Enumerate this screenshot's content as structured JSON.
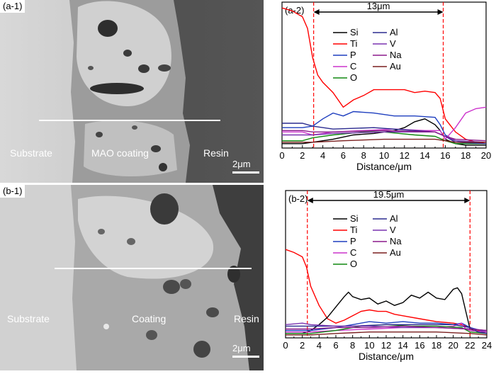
{
  "sem_panels": [
    {
      "label": "(a-1)",
      "regions": [
        "Substrate",
        "MAO coating",
        "Resin"
      ],
      "scale_bar": "2μm"
    },
    {
      "label": "(b-1)",
      "regions": [
        "Substrate",
        "Coating",
        "Resin"
      ],
      "scale_bar": "2μm"
    }
  ],
  "colors": {
    "Si": "#000000",
    "Ti": "#ff0000",
    "P": "#1f3fbf",
    "C": "#cc33cc",
    "O": "#118811",
    "Al": "#2b2b8f",
    "V": "#7a33b0",
    "Na": "#8b1a8b",
    "Au": "#7a1f1f",
    "marker": "#ff0000"
  },
  "chart_data": [
    {
      "type": "line",
      "panel_label": "(a-2)",
      "xlabel": "Distance/μm",
      "xlim": [
        0,
        20
      ],
      "xticks": [
        0,
        2,
        4,
        6,
        8,
        10,
        12,
        14,
        16,
        18,
        20
      ],
      "ylim": [
        0,
        100
      ],
      "markers": [
        3.1,
        15.8
      ],
      "span_label": "13μm",
      "legend": {
        "col1": [
          "Si",
          "Ti",
          "P",
          "C",
          "O"
        ],
        "col2": [
          "Al",
          "V",
          "Na",
          "Au"
        ]
      },
      "series": [
        {
          "name": "Ti",
          "x": [
            0,
            1,
            2,
            2.5,
            3,
            3.5,
            4,
            5,
            6,
            7,
            8,
            9,
            10,
            11,
            12,
            13,
            14,
            15,
            15.5,
            16,
            17,
            18,
            19,
            20
          ],
          "y": [
            96,
            94,
            90,
            82,
            62,
            50,
            45,
            38,
            28,
            33,
            36,
            40,
            40,
            40,
            40,
            38,
            39,
            38,
            34,
            20,
            11,
            6,
            4,
            3
          ]
        },
        {
          "name": "Si",
          "x": [
            0,
            2,
            3,
            5,
            7,
            9,
            11,
            12,
            13,
            14,
            15,
            15.5,
            16,
            17,
            18,
            20
          ],
          "y": [
            3,
            3,
            4,
            6,
            9,
            10,
            12,
            14,
            18,
            20,
            16,
            12,
            6,
            3,
            2,
            2
          ]
        },
        {
          "name": "P",
          "x": [
            0,
            2,
            3,
            4,
            5,
            6,
            7,
            9,
            11,
            13,
            15,
            15.5,
            16,
            17,
            18,
            20
          ],
          "y": [
            14,
            14,
            15,
            20,
            24,
            22,
            25,
            24,
            22,
            22,
            21,
            16,
            9,
            5,
            4,
            4
          ]
        },
        {
          "name": "C",
          "x": [
            0,
            2,
            3,
            5,
            8,
            11,
            14,
            15.5,
            16,
            17,
            18,
            19,
            20
          ],
          "y": [
            11,
            11,
            9,
            11,
            12,
            13,
            12,
            12,
            6,
            14,
            24,
            27,
            28
          ]
        },
        {
          "name": "O",
          "x": [
            0,
            2,
            3,
            5,
            8,
            10,
            13,
            15,
            16,
            17,
            20
          ],
          "y": [
            5,
            5,
            7,
            9,
            11,
            11,
            9,
            8,
            5,
            3,
            3
          ]
        },
        {
          "name": "Al",
          "x": [
            0,
            2,
            3,
            5,
            9,
            13,
            15,
            16,
            17,
            20
          ],
          "y": [
            17,
            17,
            15,
            13,
            14,
            12,
            11,
            8,
            4,
            3
          ]
        },
        {
          "name": "V",
          "x": [
            0,
            2,
            3,
            5,
            10,
            15,
            16,
            17,
            20
          ],
          "y": [
            9,
            9,
            9,
            10,
            11,
            11,
            8,
            5,
            4
          ]
        },
        {
          "name": "Na",
          "x": [
            0,
            2,
            3,
            5,
            10,
            15,
            16,
            17,
            20
          ],
          "y": [
            12,
            12,
            11,
            11,
            12,
            11,
            8,
            6,
            5
          ]
        },
        {
          "name": "Au",
          "x": [
            0,
            3,
            6,
            10,
            15,
            17,
            20
          ],
          "y": [
            4,
            4,
            5,
            6,
            6,
            4,
            4
          ]
        }
      ]
    },
    {
      "type": "line",
      "panel_label": "(b-2)",
      "xlabel": "Distance/μm",
      "xlim": [
        0,
        24
      ],
      "xticks": [
        0,
        2,
        4,
        6,
        8,
        10,
        12,
        14,
        16,
        18,
        20,
        22,
        24
      ],
      "ylim": [
        0,
        100
      ],
      "markers": [
        2.6,
        22
      ],
      "span_label": "19.5μm",
      "legend": {
        "col1": [
          "Si",
          "Ti",
          "P",
          "C",
          "O"
        ],
        "col2": [
          "Al",
          "V",
          "Na",
          "Au"
        ]
      },
      "series": [
        {
          "name": "Ti",
          "x": [
            0,
            1,
            2,
            2.5,
            3,
            4,
            5,
            6,
            7,
            8,
            9,
            10,
            11,
            12,
            13,
            14,
            16,
            18,
            20,
            21,
            22,
            23,
            24
          ],
          "y": [
            60,
            58,
            55,
            48,
            35,
            22,
            13,
            10,
            12,
            15,
            18,
            19,
            18,
            18,
            16,
            15,
            13,
            11,
            10,
            9,
            7,
            5,
            5
          ]
        },
        {
          "name": "Si",
          "x": [
            0,
            2,
            3,
            4,
            5,
            6,
            7,
            7.5,
            8,
            9,
            10,
            11,
            12,
            13,
            14,
            15,
            16,
            17,
            18,
            19,
            20,
            20.5,
            21,
            21.5,
            22,
            23,
            24
          ],
          "y": [
            3,
            3,
            5,
            9,
            14,
            21,
            28,
            31,
            28,
            26,
            27,
            23,
            25,
            22,
            24,
            29,
            27,
            31,
            27,
            26,
            33,
            34,
            30,
            18,
            6,
            4,
            4
          ]
        },
        {
          "name": "P",
          "x": [
            0,
            3,
            6,
            8,
            10,
            12,
            14,
            16,
            18,
            20,
            21,
            22,
            24
          ],
          "y": [
            5,
            5,
            7,
            9,
            11,
            10,
            11,
            10,
            10,
            9,
            10,
            7,
            4
          ]
        },
        {
          "name": "C",
          "x": [
            0,
            3,
            6,
            10,
            14,
            18,
            20,
            21,
            21.5,
            22,
            24
          ],
          "y": [
            4,
            4,
            5,
            6,
            7,
            7,
            8,
            10,
            6,
            5,
            4
          ]
        },
        {
          "name": "O",
          "x": [
            0,
            3,
            6,
            9,
            12,
            15,
            18,
            21,
            22,
            24
          ],
          "y": [
            3,
            3,
            5,
            8,
            9,
            8,
            8,
            7,
            4,
            3
          ]
        },
        {
          "name": "Al",
          "x": [
            0,
            2,
            3,
            5,
            8,
            12,
            16,
            20,
            22,
            23,
            24
          ],
          "y": [
            8,
            8,
            8,
            8,
            8,
            9,
            9,
            9,
            7,
            4,
            3
          ]
        },
        {
          "name": "V",
          "x": [
            0,
            2,
            3,
            6,
            10,
            14,
            18,
            22,
            24
          ],
          "y": [
            9,
            10,
            9,
            8,
            8,
            7,
            7,
            6,
            5
          ]
        },
        {
          "name": "Na",
          "x": [
            0,
            3,
            6,
            10,
            14,
            18,
            22,
            24
          ],
          "y": [
            6,
            6,
            7,
            7,
            8,
            7,
            6,
            5
          ]
        },
        {
          "name": "Au",
          "x": [
            0,
            3,
            6,
            10,
            14,
            18,
            22,
            24
          ],
          "y": [
            2,
            2,
            3,
            4,
            4,
            4,
            3,
            2
          ]
        }
      ]
    }
  ]
}
